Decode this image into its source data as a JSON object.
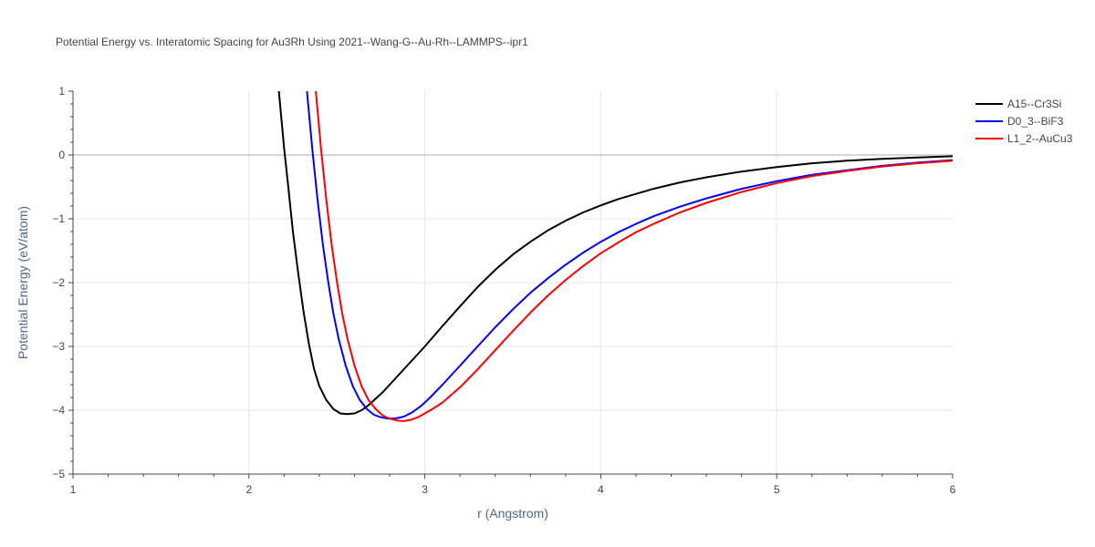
{
  "chart_data": {
    "type": "line",
    "title": "Potential Energy vs. Interatomic Spacing for Au3Rh Using 2021--Wang-G--Au-Rh--LAMMPS--ipr1",
    "xlabel": "r (Angstrom)",
    "ylabel": "Potential Energy (eV/atom)",
    "xlim": [
      1,
      6
    ],
    "ylim": [
      -5,
      1
    ],
    "xticks": [
      1,
      2,
      3,
      4,
      5,
      6
    ],
    "xtick_labels": [
      "1",
      "2",
      "3",
      "4",
      "5",
      "6"
    ],
    "yticks": [
      1,
      0,
      -1,
      -2,
      -3,
      -4,
      -5
    ],
    "ytick_labels": [
      "1",
      "0",
      "−1",
      "−2",
      "−3",
      "−4",
      "−5"
    ],
    "grid": true,
    "legend_position": "top-right",
    "series": [
      {
        "name": "A15--Cr3Si",
        "color": "#000000",
        "x": [
          2.17,
          2.2,
          2.22,
          2.25,
          2.28,
          2.31,
          2.34,
          2.37,
          2.4,
          2.44,
          2.48,
          2.52,
          2.56,
          2.6,
          2.64,
          2.68,
          2.72,
          2.76,
          2.8,
          2.85,
          2.9,
          2.95,
          3.0,
          3.1,
          3.2,
          3.3,
          3.4,
          3.5,
          3.6,
          3.7,
          3.8,
          3.9,
          4.0,
          4.1,
          4.2,
          4.3,
          4.45,
          4.6,
          4.8,
          5.0,
          5.2,
          5.4,
          5.6,
          5.8,
          6.0
        ],
        "y": [
          1.0,
          0.1,
          -0.4,
          -1.2,
          -1.85,
          -2.45,
          -2.95,
          -3.35,
          -3.62,
          -3.84,
          -3.98,
          -4.05,
          -4.06,
          -4.05,
          -4.0,
          -3.92,
          -3.82,
          -3.72,
          -3.6,
          -3.45,
          -3.3,
          -3.15,
          -3.0,
          -2.68,
          -2.37,
          -2.07,
          -1.8,
          -1.56,
          -1.36,
          -1.18,
          -1.03,
          -0.9,
          -0.79,
          -0.69,
          -0.61,
          -0.53,
          -0.43,
          -0.35,
          -0.26,
          -0.19,
          -0.13,
          -0.09,
          -0.06,
          -0.04,
          -0.02
        ]
      },
      {
        "name": "D0_3--BiF3",
        "color": "#0000ff",
        "x": [
          2.33,
          2.36,
          2.39,
          2.42,
          2.45,
          2.48,
          2.51,
          2.55,
          2.59,
          2.63,
          2.67,
          2.71,
          2.75,
          2.79,
          2.83,
          2.88,
          2.93,
          2.98,
          3.03,
          3.1,
          3.2,
          3.3,
          3.4,
          3.5,
          3.6,
          3.7,
          3.8,
          3.9,
          4.0,
          4.1,
          4.2,
          4.3,
          4.45,
          4.6,
          4.8,
          5.0,
          5.2,
          5.4,
          5.6,
          5.8,
          6.0
        ],
        "y": [
          1.0,
          0.1,
          -0.7,
          -1.4,
          -1.98,
          -2.48,
          -2.88,
          -3.3,
          -3.62,
          -3.84,
          -3.98,
          -4.07,
          -4.11,
          -4.13,
          -4.13,
          -4.1,
          -4.03,
          -3.93,
          -3.8,
          -3.6,
          -3.3,
          -3.0,
          -2.7,
          -2.42,
          -2.16,
          -1.93,
          -1.72,
          -1.53,
          -1.36,
          -1.21,
          -1.08,
          -0.96,
          -0.81,
          -0.68,
          -0.53,
          -0.41,
          -0.31,
          -0.24,
          -0.17,
          -0.12,
          -0.08
        ]
      },
      {
        "name": "L1_2--AuCu3",
        "color": "#ff0000",
        "x": [
          2.38,
          2.41,
          2.44,
          2.47,
          2.5,
          2.53,
          2.56,
          2.6,
          2.64,
          2.68,
          2.72,
          2.76,
          2.8,
          2.84,
          2.88,
          2.92,
          2.96,
          3.0,
          3.05,
          3.1,
          3.2,
          3.3,
          3.4,
          3.5,
          3.6,
          3.7,
          3.8,
          3.9,
          4.0,
          4.1,
          4.2,
          4.3,
          4.45,
          4.6,
          4.8,
          5.0,
          5.2,
          5.4,
          5.6,
          5.8,
          6.0
        ],
        "y": [
          1.0,
          0.1,
          -0.7,
          -1.4,
          -1.98,
          -2.48,
          -2.88,
          -3.3,
          -3.62,
          -3.84,
          -3.98,
          -4.08,
          -4.13,
          -4.16,
          -4.17,
          -4.15,
          -4.11,
          -4.05,
          -3.97,
          -3.88,
          -3.64,
          -3.36,
          -3.06,
          -2.76,
          -2.47,
          -2.2,
          -1.96,
          -1.74,
          -1.54,
          -1.37,
          -1.21,
          -1.08,
          -0.9,
          -0.75,
          -0.58,
          -0.44,
          -0.33,
          -0.25,
          -0.18,
          -0.13,
          -0.09
        ]
      }
    ]
  }
}
